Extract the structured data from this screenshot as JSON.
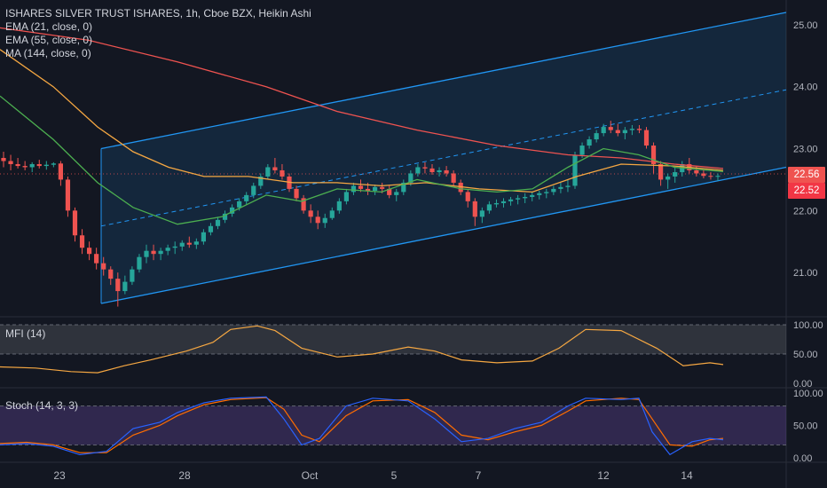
{
  "title": "ISHARES SILVER TRUST ISHARES, 1h, Cboe BZX, Heikin Ashi",
  "indicators": [
    {
      "label": "EMA (21, close, 0)",
      "color": "#4caf50"
    },
    {
      "label": "EMA (55, close, 0)",
      "color": "#f5a742"
    },
    {
      "label": "MA (144, close, 0)",
      "color": "#ef5350"
    }
  ],
  "mfi_label": "MFI (14)",
  "stoch_label": "Stoch (14, 3, 3)",
  "price_tags": [
    {
      "value": "22.56",
      "color": "#ef5350"
    },
    {
      "value": "22.52",
      "color": "#f23645"
    }
  ],
  "colors": {
    "up": "#26a69a",
    "down": "#ef5350",
    "channel": "#2962ff",
    "background": "#131722"
  },
  "chart_data": {
    "type": "candlestick",
    "x_ticks": [
      "23",
      "28",
      "Oct",
      "5",
      "7",
      "12",
      "14"
    ],
    "y_ticks": [
      "25.00",
      "24.00",
      "23.00",
      "22.00",
      "21.00"
    ],
    "ylim": [
      20.3,
      25.4
    ],
    "mfi_ticks": [
      "100.00",
      "50.00",
      "0.00"
    ],
    "stoch_ticks": [
      "100.00",
      "50.00",
      "0.00"
    ],
    "candles": [
      [
        22.85,
        22.95,
        22.7,
        22.8
      ],
      [
        22.8,
        22.9,
        22.65,
        22.75
      ],
      [
        22.75,
        22.85,
        22.68,
        22.72
      ],
      [
        22.72,
        22.8,
        22.65,
        22.7
      ],
      [
        22.7,
        22.78,
        22.62,
        22.75
      ],
      [
        22.75,
        22.82,
        22.68,
        22.72
      ],
      [
        22.72,
        22.8,
        22.66,
        22.74
      ],
      [
        22.74,
        22.78,
        22.7,
        22.76
      ],
      [
        22.76,
        22.8,
        22.4,
        22.5
      ],
      [
        22.5,
        22.55,
        21.9,
        22.0
      ],
      [
        22.0,
        22.05,
        21.5,
        21.6
      ],
      [
        21.6,
        21.7,
        21.3,
        21.4
      ],
      [
        21.4,
        21.5,
        21.2,
        21.3
      ],
      [
        21.3,
        21.4,
        21.05,
        21.15
      ],
      [
        21.15,
        21.25,
        20.95,
        21.05
      ],
      [
        21.05,
        21.1,
        20.8,
        20.9
      ],
      [
        20.9,
        21.0,
        20.45,
        20.7
      ],
      [
        20.7,
        20.95,
        20.65,
        20.85
      ],
      [
        20.85,
        21.1,
        20.8,
        21.05
      ],
      [
        21.05,
        21.3,
        21.0,
        21.25
      ],
      [
        21.25,
        21.45,
        21.15,
        21.35
      ],
      [
        21.35,
        21.45,
        21.2,
        21.3
      ],
      [
        21.3,
        21.4,
        21.2,
        21.35
      ],
      [
        21.35,
        21.45,
        21.28,
        21.4
      ],
      [
        21.4,
        21.5,
        21.3,
        21.42
      ],
      [
        21.42,
        21.52,
        21.35,
        21.48
      ],
      [
        21.48,
        21.58,
        21.4,
        21.45
      ],
      [
        21.45,
        21.55,
        21.38,
        21.5
      ],
      [
        21.5,
        21.7,
        21.45,
        21.65
      ],
      [
        21.65,
        21.8,
        21.6,
        21.75
      ],
      [
        21.75,
        21.9,
        21.7,
        21.85
      ],
      [
        21.85,
        22.0,
        21.8,
        21.95
      ],
      [
        21.95,
        22.1,
        21.9,
        22.05
      ],
      [
        22.05,
        22.2,
        22.0,
        22.15
      ],
      [
        22.15,
        22.3,
        22.1,
        22.25
      ],
      [
        22.25,
        22.45,
        22.2,
        22.4
      ],
      [
        22.4,
        22.6,
        22.35,
        22.55
      ],
      [
        22.55,
        22.75,
        22.5,
        22.7
      ],
      [
        22.7,
        22.85,
        22.6,
        22.65
      ],
      [
        22.65,
        22.75,
        22.5,
        22.55
      ],
      [
        22.55,
        22.6,
        22.3,
        22.35
      ],
      [
        22.35,
        22.4,
        22.15,
        22.2
      ],
      [
        22.2,
        22.25,
        21.95,
        22.0
      ],
      [
        22.0,
        22.1,
        21.8,
        21.9
      ],
      [
        21.9,
        22.0,
        21.7,
        21.8
      ],
      [
        21.8,
        21.95,
        21.72,
        21.88
      ],
      [
        21.88,
        22.05,
        21.85,
        22.0
      ],
      [
        22.0,
        22.2,
        21.95,
        22.15
      ],
      [
        22.15,
        22.35,
        22.1,
        22.3
      ],
      [
        22.3,
        22.45,
        22.25,
        22.4
      ],
      [
        22.4,
        22.5,
        22.3,
        22.35
      ],
      [
        22.35,
        22.45,
        22.25,
        22.32
      ],
      [
        22.32,
        22.42,
        22.25,
        22.38
      ],
      [
        22.38,
        22.45,
        22.28,
        22.35
      ],
      [
        22.35,
        22.4,
        22.2,
        22.25
      ],
      [
        22.25,
        22.35,
        22.15,
        22.3
      ],
      [
        22.3,
        22.5,
        22.25,
        22.45
      ],
      [
        22.45,
        22.65,
        22.4,
        22.6
      ],
      [
        22.6,
        22.75,
        22.55,
        22.7
      ],
      [
        22.7,
        22.78,
        22.6,
        22.68
      ],
      [
        22.68,
        22.75,
        22.58,
        22.62
      ],
      [
        22.62,
        22.7,
        22.55,
        22.65
      ],
      [
        22.65,
        22.72,
        22.55,
        22.6
      ],
      [
        22.6,
        22.65,
        22.4,
        22.45
      ],
      [
        22.45,
        22.5,
        22.25,
        22.3
      ],
      [
        22.3,
        22.35,
        22.05,
        22.15
      ],
      [
        22.15,
        22.2,
        21.75,
        21.9
      ],
      [
        21.9,
        22.05,
        21.8,
        22.0
      ],
      [
        22.0,
        22.15,
        21.95,
        22.1
      ],
      [
        22.1,
        22.18,
        22.05,
        22.12
      ],
      [
        22.12,
        22.2,
        22.05,
        22.15
      ],
      [
        22.15,
        22.22,
        22.08,
        22.18
      ],
      [
        22.18,
        22.25,
        22.1,
        22.2
      ],
      [
        22.2,
        22.28,
        22.12,
        22.22
      ],
      [
        22.22,
        22.3,
        22.15,
        22.25
      ],
      [
        22.25,
        22.32,
        22.18,
        22.28
      ],
      [
        22.28,
        22.35,
        22.2,
        22.3
      ],
      [
        22.3,
        22.4,
        22.25,
        22.35
      ],
      [
        22.35,
        22.45,
        22.28,
        22.38
      ],
      [
        22.38,
        22.5,
        22.3,
        22.4
      ],
      [
        22.4,
        22.95,
        22.35,
        22.9
      ],
      [
        22.9,
        23.1,
        22.85,
        23.05
      ],
      [
        23.05,
        23.2,
        23.0,
        23.15
      ],
      [
        23.15,
        23.3,
        23.1,
        23.25
      ],
      [
        23.25,
        23.4,
        23.2,
        23.35
      ],
      [
        23.35,
        23.45,
        23.25,
        23.3
      ],
      [
        23.3,
        23.4,
        23.2,
        23.25
      ],
      [
        23.25,
        23.35,
        23.15,
        23.3
      ],
      [
        23.3,
        23.38,
        23.22,
        23.32
      ],
      [
        23.32,
        23.38,
        23.25,
        23.3
      ],
      [
        23.3,
        23.35,
        23.0,
        23.05
      ],
      [
        23.05,
        23.1,
        22.6,
        22.75
      ],
      [
        22.75,
        22.8,
        22.4,
        22.5
      ],
      [
        22.5,
        22.6,
        22.35,
        22.55
      ],
      [
        22.55,
        22.7,
        22.45,
        22.62
      ],
      [
        22.62,
        22.8,
        22.55,
        22.75
      ],
      [
        22.75,
        22.85,
        22.6,
        22.65
      ],
      [
        22.65,
        22.72,
        22.55,
        22.6
      ],
      [
        22.6,
        22.66,
        22.52,
        22.56
      ],
      [
        22.56,
        22.62,
        22.5,
        22.55
      ],
      [
        22.55,
        22.6,
        22.48,
        22.56
      ]
    ],
    "ema21": [
      [
        0,
        23.85
      ],
      [
        60,
        23.15
      ],
      [
        110,
        22.45
      ],
      [
        150,
        22.05
      ],
      [
        200,
        21.78
      ],
      [
        250,
        21.9
      ],
      [
        300,
        22.25
      ],
      [
        340,
        22.15
      ],
      [
        380,
        22.35
      ],
      [
        430,
        22.3
      ],
      [
        470,
        22.5
      ],
      [
        520,
        22.35
      ],
      [
        560,
        22.3
      ],
      [
        600,
        22.35
      ],
      [
        640,
        22.7
      ],
      [
        680,
        23.0
      ],
      [
        720,
        22.9
      ],
      [
        760,
        22.7
      ],
      [
        815,
        22.63
      ]
    ],
    "ema55": [
      [
        0,
        24.6
      ],
      [
        60,
        24.0
      ],
      [
        110,
        23.35
      ],
      [
        150,
        22.95
      ],
      [
        190,
        22.7
      ],
      [
        230,
        22.55
      ],
      [
        280,
        22.55
      ],
      [
        330,
        22.45
      ],
      [
        380,
        22.45
      ],
      [
        430,
        22.4
      ],
      [
        480,
        22.45
      ],
      [
        540,
        22.35
      ],
      [
        600,
        22.3
      ],
      [
        650,
        22.55
      ],
      [
        700,
        22.75
      ],
      [
        760,
        22.72
      ],
      [
        815,
        22.65
      ]
    ],
    "ma144": [
      [
        0,
        24.95
      ],
      [
        100,
        24.75
      ],
      [
        200,
        24.4
      ],
      [
        300,
        24.0
      ],
      [
        380,
        23.6
      ],
      [
        470,
        23.3
      ],
      [
        560,
        23.05
      ],
      [
        640,
        22.9
      ],
      [
        700,
        22.85
      ],
      [
        760,
        22.75
      ],
      [
        815,
        22.68
      ]
    ],
    "channel": {
      "x1": 114,
      "x2": 886,
      "lower": [
        20.5,
        22.7
      ],
      "upper": [
        23.0,
        25.2
      ],
      "mid": [
        21.75,
        23.95
      ]
    },
    "mfi": [
      [
        0,
        28
      ],
      [
        40,
        26
      ],
      [
        80,
        20
      ],
      [
        110,
        18
      ],
      [
        140,
        30
      ],
      [
        170,
        40
      ],
      [
        210,
        55
      ],
      [
        240,
        70
      ],
      [
        260,
        92
      ],
      [
        290,
        98
      ],
      [
        310,
        90
      ],
      [
        340,
        60
      ],
      [
        380,
        45
      ],
      [
        420,
        50
      ],
      [
        460,
        62
      ],
      [
        490,
        55
      ],
      [
        520,
        40
      ],
      [
        560,
        35
      ],
      [
        600,
        38
      ],
      [
        630,
        60
      ],
      [
        660,
        92
      ],
      [
        700,
        90
      ],
      [
        740,
        60
      ],
      [
        770,
        30
      ],
      [
        800,
        35
      ],
      [
        815,
        32
      ]
    ],
    "stoch_k": [
      [
        0,
        20
      ],
      [
        30,
        22
      ],
      [
        60,
        18
      ],
      [
        90,
        5
      ],
      [
        120,
        10
      ],
      [
        150,
        45
      ],
      [
        180,
        55
      ],
      [
        200,
        70
      ],
      [
        230,
        85
      ],
      [
        260,
        92
      ],
      [
        300,
        94
      ],
      [
        320,
        60
      ],
      [
        340,
        20
      ],
      [
        360,
        30
      ],
      [
        390,
        80
      ],
      [
        420,
        92
      ],
      [
        460,
        88
      ],
      [
        490,
        60
      ],
      [
        520,
        25
      ],
      [
        550,
        30
      ],
      [
        580,
        45
      ],
      [
        610,
        55
      ],
      [
        640,
        80
      ],
      [
        660,
        92
      ],
      [
        700,
        90
      ],
      [
        720,
        92
      ],
      [
        735,
        40
      ],
      [
        755,
        5
      ],
      [
        780,
        25
      ],
      [
        800,
        30
      ],
      [
        815,
        28
      ]
    ],
    "stoch_d": [
      [
        0,
        22
      ],
      [
        30,
        24
      ],
      [
        60,
        20
      ],
      [
        90,
        8
      ],
      [
        120,
        8
      ],
      [
        150,
        35
      ],
      [
        180,
        50
      ],
      [
        200,
        65
      ],
      [
        230,
        82
      ],
      [
        260,
        90
      ],
      [
        300,
        93
      ],
      [
        320,
        75
      ],
      [
        340,
        35
      ],
      [
        360,
        25
      ],
      [
        390,
        65
      ],
      [
        420,
        88
      ],
      [
        460,
        90
      ],
      [
        490,
        70
      ],
      [
        520,
        35
      ],
      [
        550,
        28
      ],
      [
        580,
        40
      ],
      [
        610,
        50
      ],
      [
        640,
        72
      ],
      [
        660,
        88
      ],
      [
        700,
        92
      ],
      [
        720,
        90
      ],
      [
        735,
        60
      ],
      [
        755,
        20
      ],
      [
        780,
        18
      ],
      [
        800,
        28
      ],
      [
        815,
        30
      ]
    ]
  }
}
